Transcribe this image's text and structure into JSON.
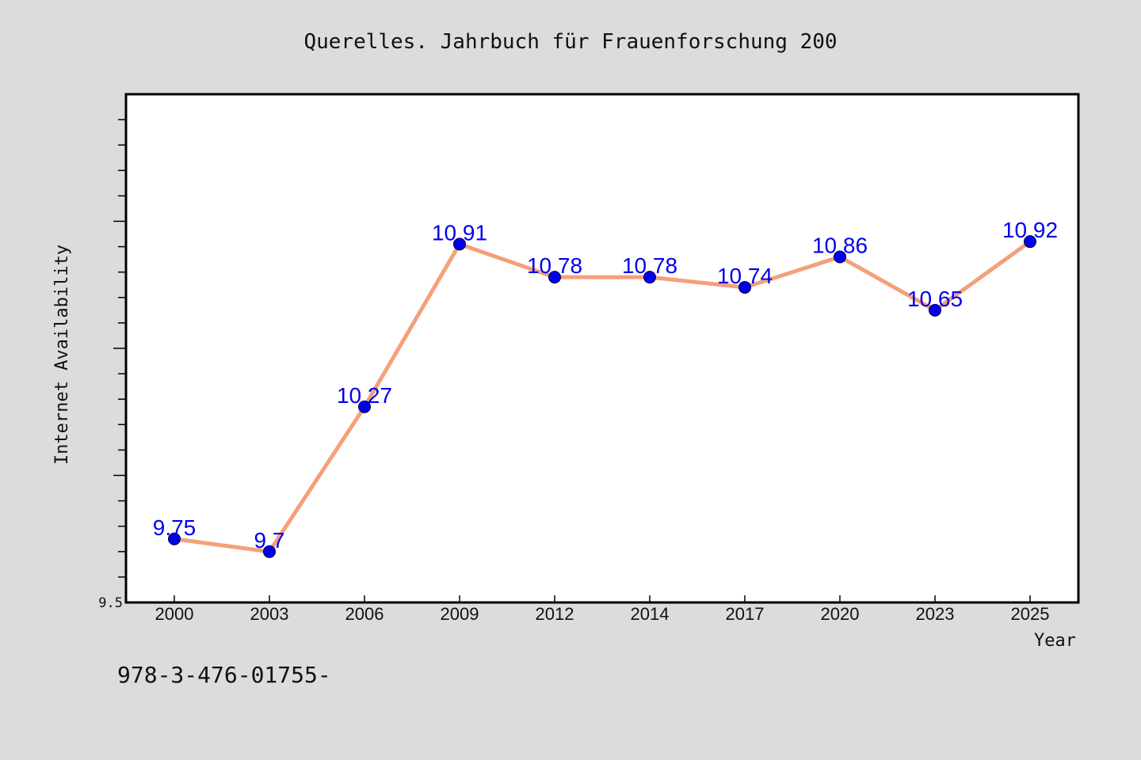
{
  "chart_data": {
    "type": "line",
    "title": "Querelles. Jahrbuch für Frauenforschung 200",
    "xlabel": "Year",
    "ylabel": "Internet Availability",
    "categories": [
      "2000",
      "2003",
      "2006",
      "2009",
      "2012",
      "2014",
      "2017",
      "2020",
      "2023",
      "2025"
    ],
    "series": [
      {
        "values": [
          9.75,
          9.7,
          10.27,
          10.91,
          10.78,
          10.78,
          10.74,
          10.86,
          10.65,
          10.92
        ]
      }
    ],
    "data_labels": [
      "9.75",
      "9.7",
      "10.27",
      "10.91",
      "10.78",
      "10.78",
      "10.74",
      "10.86",
      "10.65",
      "10.92"
    ],
    "y_tick_labels": [
      "9.5"
    ],
    "ylim": [
      9.5,
      11.5
    ],
    "y_minor_step": 0.1,
    "y_major_step": 0.5,
    "grid": false,
    "legend": "none"
  },
  "footnote": "978-3-476-01755-",
  "colors": {
    "background": "#dcdcdc",
    "plot_background": "#ffffff",
    "line": "#f4a07a",
    "marker": "#0000ee",
    "data_label": "#0000ee",
    "axis": "#000000"
  }
}
